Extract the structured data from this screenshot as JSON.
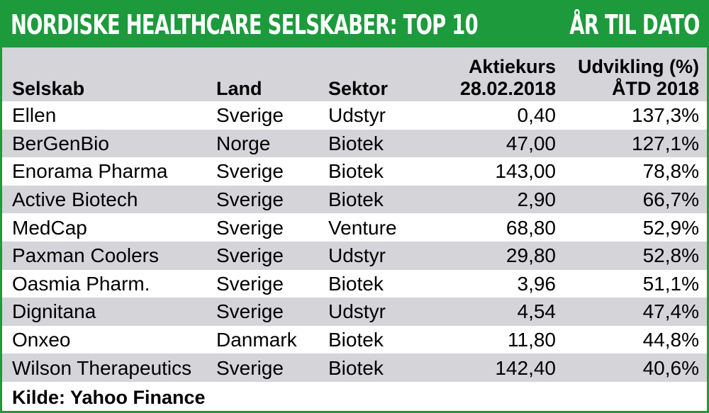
{
  "title": "NORDISKE HEALTHCARE SELSKABER: TOP 10",
  "period_label": "ÅR TIL DATO",
  "source": "Kilde: Yahoo Finance",
  "colors": {
    "accent": "#1d9a3c",
    "row_shade": "#d4d4d9",
    "text": "#000000"
  },
  "chart_data": {
    "type": "table",
    "title": "NORDISKE HEALTHCARE SELSKABER: TOP 10",
    "subtitle": "ÅR TIL DATO",
    "columns": {
      "name": "Selskab",
      "country": "Land",
      "sector": "Sektor",
      "price_line1": "Aktiekurs",
      "price_line2": "28.02.2018",
      "change_line1": "Udvikling (%)",
      "change_line2": "ÅTD 2018"
    },
    "rows": [
      {
        "name": "Ellen",
        "country": "Sverige",
        "sector": "Udstyr",
        "price": "0,40",
        "change": "137,3%"
      },
      {
        "name": "BerGenBio",
        "country": "Norge",
        "sector": "Biotek",
        "price": "47,00",
        "change": "127,1%"
      },
      {
        "name": "Enorama Pharma",
        "country": "Sverige",
        "sector": "Biotek",
        "price": "143,00",
        "change": "78,8%"
      },
      {
        "name": "Active Biotech",
        "country": "Sverige",
        "sector": "Biotek",
        "price": "2,90",
        "change": "66,7%"
      },
      {
        "name": "MedCap",
        "country": "Sverige",
        "sector": "Venture",
        "price": "68,80",
        "change": "52,9%"
      },
      {
        "name": "Paxman Coolers",
        "country": "Sverige",
        "sector": "Udstyr",
        "price": "29,80",
        "change": "52,8%"
      },
      {
        "name": "Oasmia Pharm.",
        "country": "Sverige",
        "sector": "Biotek",
        "price": "3,96",
        "change": "51,1%"
      },
      {
        "name": "Dignitana",
        "country": "Sverige",
        "sector": "Udstyr",
        "price": "4,54",
        "change": "47,4%"
      },
      {
        "name": "Onxeo",
        "country": "Danmark",
        "sector": "Biotek",
        "price": "11,80",
        "change": "44,8%"
      },
      {
        "name": "Wilson Therapeutics",
        "country": "Sverige",
        "sector": "Biotek",
        "price": "142,40",
        "change": "40,6%"
      }
    ]
  }
}
